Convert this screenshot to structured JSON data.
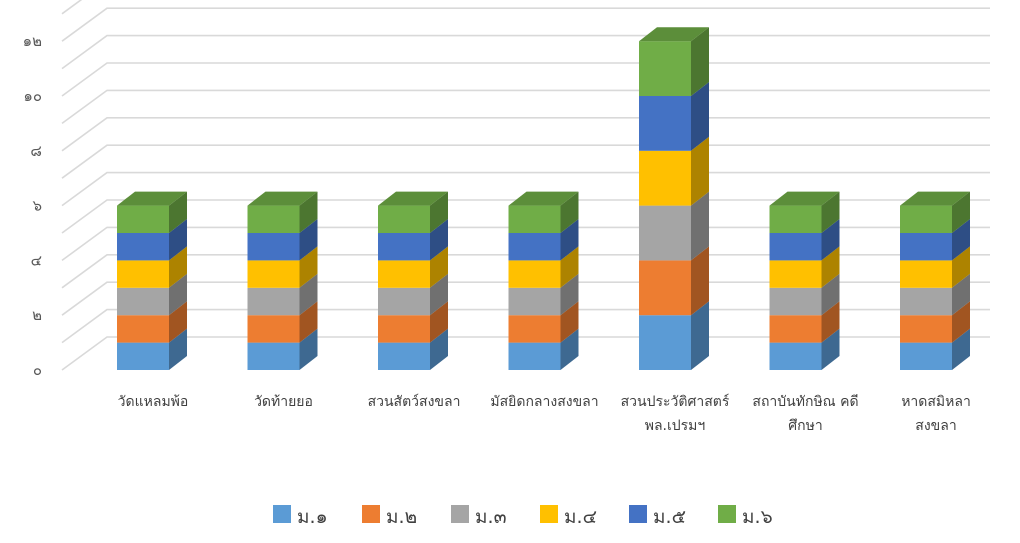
{
  "chart_data": {
    "type": "bar",
    "stacked": true,
    "three_d": true,
    "categories": [
      [
        "วัดแหลมพ้อ"
      ],
      [
        "วัดท้ายยอ"
      ],
      [
        "สวนสัตว์สงขลา"
      ],
      [
        "มัสยิดกลางสงขลา"
      ],
      [
        "สวนประวัติศาสตร์",
        "พล.เปรมฯ"
      ],
      [
        "สถาบันทักษิณ คดี",
        "ศึกษา"
      ],
      [
        "หาดสมิหลา",
        "สงขลา"
      ]
    ],
    "series": [
      {
        "name": "ม.๑",
        "color": "#5B9BD5",
        "values": [
          1,
          1,
          1,
          1,
          2,
          1,
          1
        ]
      },
      {
        "name": "ม.๒",
        "color": "#ED7D31",
        "values": [
          1,
          1,
          1,
          1,
          2,
          1,
          1
        ]
      },
      {
        "name": "ม.๓",
        "color": "#A5A5A5",
        "values": [
          1,
          1,
          1,
          1,
          2,
          1,
          1
        ]
      },
      {
        "name": "ม.๔",
        "color": "#FFC000",
        "values": [
          1,
          1,
          1,
          1,
          2,
          1,
          1
        ]
      },
      {
        "name": "ม.๕",
        "color": "#4472C4",
        "values": [
          1,
          1,
          1,
          1,
          2,
          1,
          1
        ]
      },
      {
        "name": "ม.๖",
        "color": "#70AD47",
        "values": [
          1,
          1,
          1,
          1,
          2,
          1,
          1
        ]
      }
    ],
    "y_ticks": [
      {
        "value": 0,
        "label": "๐"
      },
      {
        "value": 2,
        "label": "๒"
      },
      {
        "value": 4,
        "label": "๔"
      },
      {
        "value": 6,
        "label": "๖"
      },
      {
        "value": 8,
        "label": "๘"
      },
      {
        "value": 10,
        "label": "๑๐"
      },
      {
        "value": 12,
        "label": "๑๒"
      }
    ],
    "ylim": [
      0,
      13
    ],
    "grid": true,
    "legend_position": "bottom",
    "title": "",
    "xlabel": "",
    "ylabel": ""
  }
}
